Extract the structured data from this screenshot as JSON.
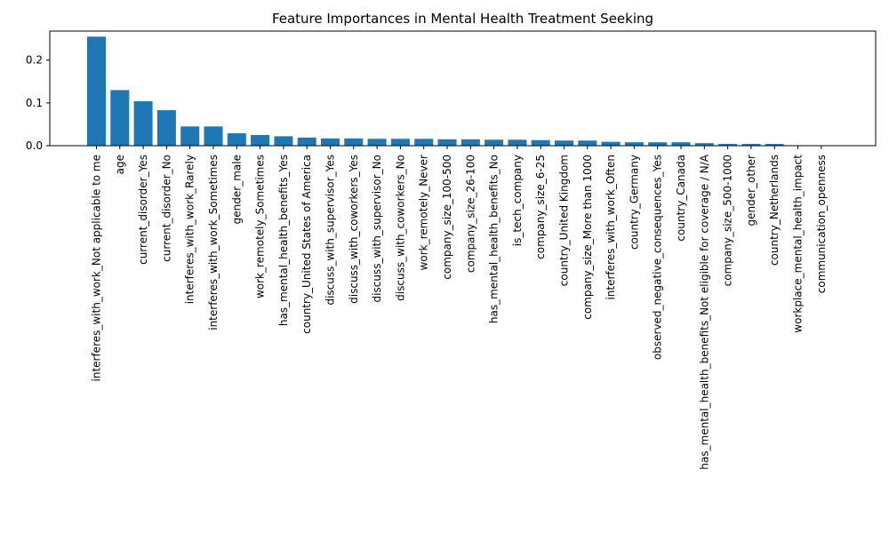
{
  "chart_data": {
    "type": "bar",
    "title": "Feature Importances in Mental Health Treatment Seeking",
    "xlabel": "",
    "ylabel": "",
    "ylim": [
      0,
      0.268
    ],
    "yticks": [
      0.0,
      0.1,
      0.2
    ],
    "ytick_labels": [
      "0.0",
      "0.1",
      "0.2"
    ],
    "grid": false,
    "bar_color": "#1f77b4",
    "categories": [
      "interferes_with_work_Not applicable to me",
      "age",
      "current_disorder_Yes",
      "current_disorder_No",
      "interferes_with_work_Rarely",
      "interferes_with_work_Sometimes",
      "gender_male",
      "work_remotely_Sometimes",
      "has_mental_health_benefits_Yes",
      "country_United States of America",
      "discuss_with_supervisor_Yes",
      "discuss_with_coworkers_Yes",
      "discuss_with_supervisor_No",
      "discuss_with_coworkers_No",
      "work_remotely_Never",
      "company_size_100-500",
      "company_size_26-100",
      "has_mental_health_benefits_No",
      "is_tech_company",
      "company_size_6-25",
      "country_United Kingdom",
      "company_size_More than 1000",
      "interferes_with_work_Often",
      "country_Germany",
      "observed_negative_consequences_Yes",
      "country_Canada",
      "has_mental_health_benefits_Not eligible for coverage / N/A",
      "company_size_500-1000",
      "gender_other",
      "country_Netherlands",
      "workplace_mental_health_impact",
      "communication_openness"
    ],
    "values": [
      0.255,
      0.13,
      0.104,
      0.083,
      0.045,
      0.045,
      0.029,
      0.025,
      0.022,
      0.019,
      0.017,
      0.017,
      0.016,
      0.016,
      0.016,
      0.015,
      0.015,
      0.014,
      0.014,
      0.013,
      0.012,
      0.012,
      0.009,
      0.008,
      0.008,
      0.008,
      0.006,
      0.004,
      0.004,
      0.004,
      0.0,
      0.0
    ]
  }
}
